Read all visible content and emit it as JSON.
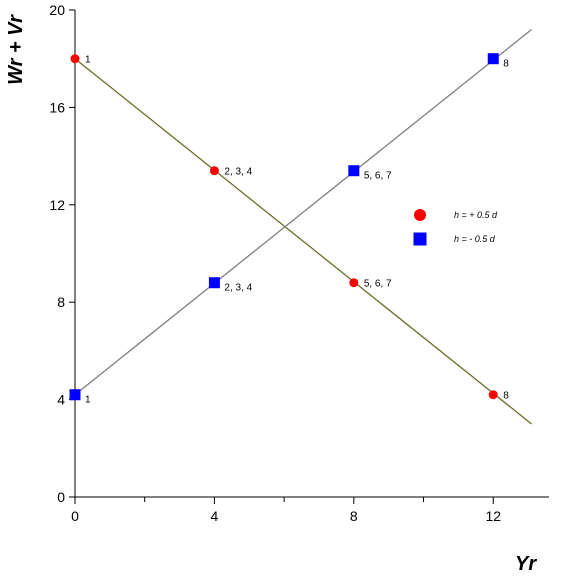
{
  "chart_data": {
    "type": "scatter",
    "xlabel": "Yr",
    "ylabel": "Wr + Vr",
    "xlim": [
      0,
      13.6
    ],
    "ylim": [
      0,
      20
    ],
    "x_ticks": [
      0,
      4,
      8,
      12
    ],
    "x_minor_ticks": [
      2,
      6,
      10
    ],
    "y_ticks": [
      0,
      4,
      8,
      12,
      16,
      20
    ],
    "legend_position": "center-right",
    "grid": false,
    "series": [
      {
        "name": "h = + 0.5 d",
        "marker": "circle",
        "color": "#ff0000",
        "line_color": "#6b6b2a",
        "points": [
          {
            "x": 0,
            "y": 18.0,
            "label": "1"
          },
          {
            "x": 4,
            "y": 13.4,
            "label": "2, 3, 4"
          },
          {
            "x": 8,
            "y": 8.8,
            "label": "5, 6, 7"
          },
          {
            "x": 12,
            "y": 4.2,
            "label": "8"
          }
        ],
        "fit_line": [
          [
            0,
            18.0
          ],
          [
            13.1,
            3.0
          ]
        ]
      },
      {
        "name": "h = - 0.5 d",
        "marker": "square",
        "color": "#0000ff",
        "line_color": "#808080",
        "points": [
          {
            "x": 0,
            "y": 4.2,
            "label": "1"
          },
          {
            "x": 4,
            "y": 8.8,
            "label": "2, 3, 4"
          },
          {
            "x": 8,
            "y": 13.4,
            "label": "5, 6, 7"
          },
          {
            "x": 12,
            "y": 18.0,
            "label": "8"
          }
        ],
        "fit_line": [
          [
            0,
            4.2
          ],
          [
            13.1,
            19.2
          ]
        ]
      }
    ]
  }
}
